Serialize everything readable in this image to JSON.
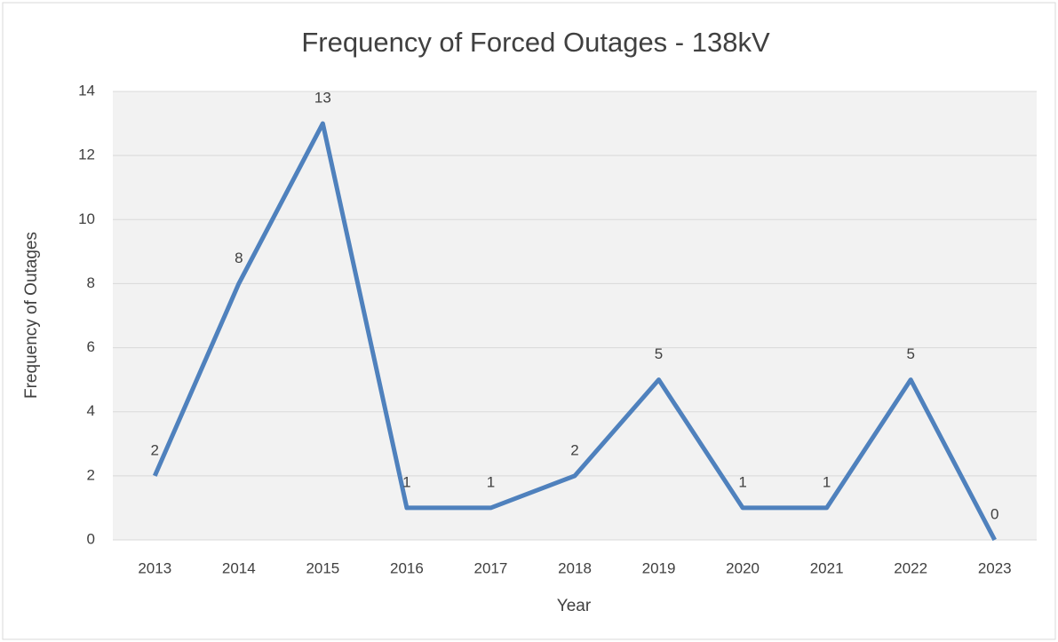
{
  "chart_data": {
    "type": "line",
    "title": "Frequency of Forced Outages - 138kV",
    "x_label": "Year",
    "y_label": "Frequency of Outages",
    "categories": [
      "2013",
      "2014",
      "2015",
      "2016",
      "2017",
      "2018",
      "2019",
      "2020",
      "2021",
      "2022",
      "2023"
    ],
    "values": [
      2,
      8,
      13,
      1,
      1,
      2,
      5,
      1,
      1,
      5,
      0
    ],
    "color": "#4f81bd",
    "ylim": [
      0,
      14
    ],
    "yticks": [
      0,
      2,
      4,
      6,
      8,
      10,
      12,
      14
    ],
    "grid": true
  }
}
